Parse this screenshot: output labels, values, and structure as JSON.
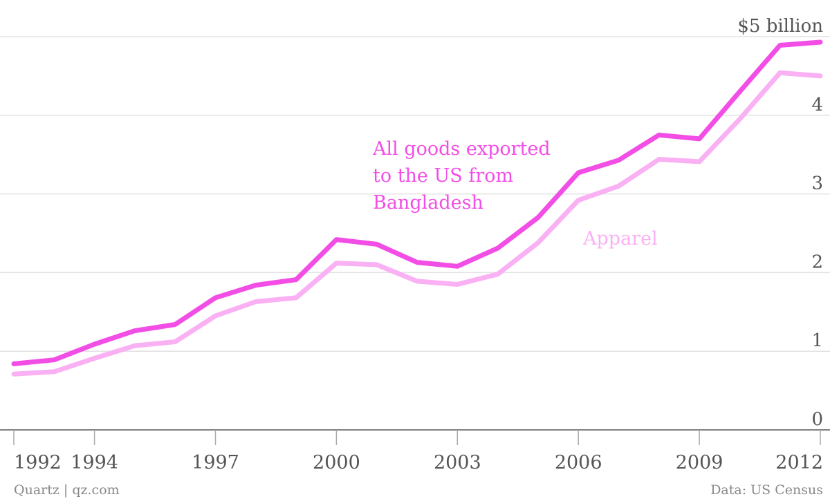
{
  "chart_data": {
    "type": "line",
    "x": [
      1992,
      1993,
      1994,
      1995,
      1996,
      1997,
      1998,
      1999,
      2000,
      2001,
      2002,
      2003,
      2004,
      2005,
      2006,
      2007,
      2008,
      2009,
      2010,
      2011,
      2012
    ],
    "series": [
      {
        "name": "All goods exported to the US from Bangladesh",
        "label_lines": [
          "All goods exported",
          "to the US from",
          "Bangladesh"
        ],
        "color": "#f24ee6",
        "values": [
          0.84,
          0.89,
          1.09,
          1.26,
          1.34,
          1.68,
          1.84,
          1.91,
          2.42,
          2.36,
          2.13,
          2.08,
          2.31,
          2.7,
          3.27,
          3.43,
          3.75,
          3.7,
          4.3,
          4.89,
          4.93
        ]
      },
      {
        "name": "Apparel",
        "label_lines": [
          "Apparel"
        ],
        "color": "#f9b1f4",
        "values": [
          0.71,
          0.74,
          0.91,
          1.07,
          1.12,
          1.45,
          1.63,
          1.68,
          2.12,
          2.1,
          1.89,
          1.85,
          1.98,
          2.38,
          2.92,
          3.1,
          3.44,
          3.41,
          3.95,
          4.54,
          4.5
        ]
      }
    ],
    "y_ticks": [
      "0",
      "1",
      "2",
      "3",
      "4",
      "$5 billion"
    ],
    "y_tick_values": [
      0,
      1,
      2,
      3,
      4,
      5
    ],
    "x_ticks": [
      "1992",
      "1994",
      "1997",
      "2000",
      "2003",
      "2006",
      "2009",
      "2012"
    ],
    "x_tick_values": [
      1992,
      1994,
      1997,
      2000,
      2003,
      2006,
      2009,
      2012
    ],
    "ylim": [
      0,
      5
    ],
    "xlim": [
      1992,
      2012
    ],
    "grid": true,
    "title": "",
    "xlabel": "",
    "ylabel": ""
  },
  "credits": {
    "source_left": "Quartz | qz.com",
    "source_right": "Data: US Census"
  }
}
